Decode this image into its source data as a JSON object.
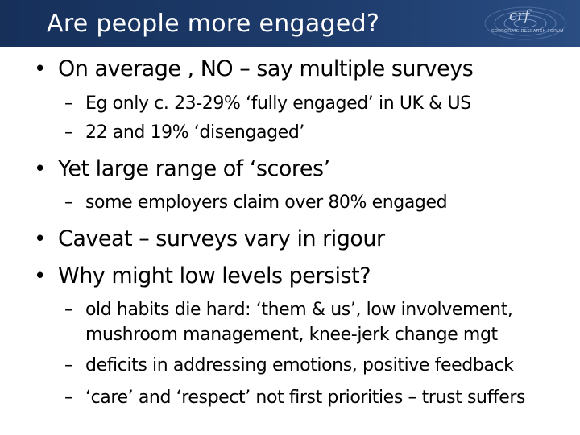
{
  "header": {
    "title": "Are people more engaged?",
    "logo_text": "crf",
    "logo_sub": "CORPORATE RESEARCH FORUM"
  },
  "bullets": [
    {
      "text": "On average , NO – say multiple surveys",
      "sub": [
        "Eg only c. 23-29%  ‘fully engaged’ in UK & US",
        "22 and 19% ‘disengaged’"
      ]
    },
    {
      "text": "Yet large range of ‘scores’",
      "sub": [
        "some employers claim over 80% engaged"
      ]
    },
    {
      "text": "Caveat – surveys vary in rigour",
      "sub": []
    },
    {
      "text": "Why might low levels persist?",
      "sub": [
        "old habits die hard: ‘them & us’, low involvement,",
        "mushroom management, knee-jerk change mgt",
        "deficits in addressing emotions, positive feedback",
        "‘care’ and ‘respect’ not first priorities – trust suffers"
      ]
    }
  ],
  "bullet_char": "•",
  "dash_char": "–",
  "colors": {
    "header_bg": "#1d3b6b",
    "header_text": "#ffffff",
    "body_text": "#000000"
  }
}
